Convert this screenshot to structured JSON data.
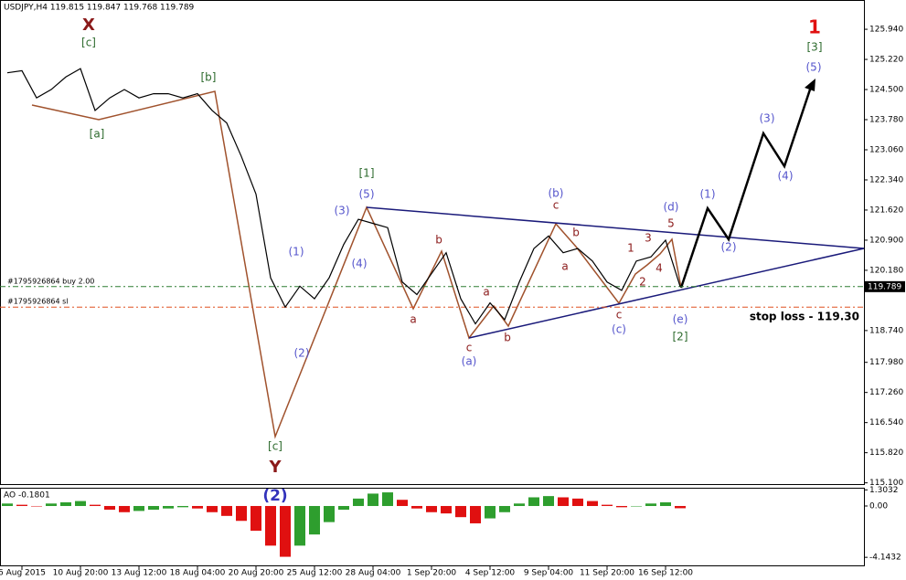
{
  "chart_data": {
    "type": "line",
    "title": "USDJPY,H4  119.815 119.847 119.768 119.789",
    "categories": [
      null,
      "6 Aug 2015",
      null,
      null,
      null,
      "10 Aug 20:00",
      null,
      null,
      null,
      "13 Aug 12:00",
      null,
      null,
      null,
      "18 Aug 04:00",
      null,
      null,
      null,
      "20 Aug 20:00",
      null,
      null,
      null,
      "25 Aug 12:00",
      null,
      null,
      null,
      "28 Aug 04:00",
      null,
      null,
      null,
      "1 Sep 20:00",
      null,
      null,
      null,
      "4 Sep 12:00",
      null,
      null,
      null,
      "9 Sep 04:00",
      null,
      null,
      null,
      "11 Sep 20:00",
      null,
      null,
      null,
      "16 Sep 12:00",
      null
    ],
    "series": [
      {
        "name": "USDJPY",
        "color": "#000000",
        "values": [
          124.9,
          124.95,
          124.3,
          124.5,
          124.8,
          125.0,
          124.0,
          124.3,
          124.5,
          124.3,
          124.4,
          124.4,
          124.3,
          124.4,
          124.0,
          123.7,
          122.9,
          122.0,
          120.0,
          119.3,
          119.8,
          119.5,
          120.0,
          120.8,
          121.4,
          121.3,
          121.2,
          119.9,
          119.6,
          120.1,
          120.6,
          119.5,
          118.9,
          119.4,
          119.0,
          119.9,
          120.7,
          121.0,
          120.6,
          120.7,
          120.4,
          119.9,
          119.7,
          120.4,
          120.5,
          120.9,
          119.789
        ]
      }
    ],
    "ylim": [
      115.07,
      126.64
    ],
    "yticks": [
      {
        "value": 125.94,
        "label": "125.940"
      },
      {
        "value": 125.22,
        "label": "125.220"
      },
      {
        "value": 124.5,
        "label": "124.500"
      },
      {
        "value": 123.78,
        "label": "123.780"
      },
      {
        "value": 123.06,
        "label": "123.060"
      },
      {
        "value": 122.34,
        "label": "122.340"
      },
      {
        "value": 121.62,
        "label": "121.620"
      },
      {
        "value": 120.9,
        "label": "120.900"
      },
      {
        "value": 120.18,
        "label": "120.180"
      },
      {
        "value": 118.74,
        "label": "118.740"
      },
      {
        "value": 117.98,
        "label": "117.980"
      },
      {
        "value": 117.26,
        "label": "117.260"
      },
      {
        "value": 116.54,
        "label": "116.540"
      },
      {
        "value": 115.82,
        "label": "115.820"
      },
      {
        "value": 115.1,
        "label": "115.100"
      }
    ],
    "current_price": 119.789,
    "levels": [
      {
        "label": "#1795926864 buy 2.00",
        "value": 119.79,
        "color": "#2e7d32"
      },
      {
        "label": "#1795926864 sl",
        "value": 119.3,
        "color": "#e05020"
      }
    ],
    "stop_loss_label": "stop loss - 119.30",
    "annotations": [
      {
        "text": "X",
        "color": "#8b1a1a"
      },
      {
        "text": "[c]",
        "color": "#2e6b2e"
      },
      {
        "text": "[a]",
        "color": "#2e6b2e"
      },
      {
        "text": "[b]",
        "color": "#2e6b2e"
      },
      {
        "text": "[1]",
        "color": "#2e6b2e"
      },
      {
        "text": "(5)",
        "color": "#5555cc"
      },
      {
        "text": "(3)",
        "color": "#5555cc"
      },
      {
        "text": "(1)",
        "color": "#5555cc"
      },
      {
        "text": "(4)",
        "color": "#5555cc"
      },
      {
        "text": "(2)",
        "color": "#5555cc"
      },
      {
        "text": "[c]",
        "color": "#2e6b2e"
      },
      {
        "text": "Y",
        "color": "#8b1a1a"
      },
      {
        "text": "b",
        "color": "#8b1a1a"
      },
      {
        "text": "a",
        "color": "#8b1a1a"
      },
      {
        "text": "c",
        "color": "#8b1a1a"
      },
      {
        "text": "(a)",
        "color": "#5555cc"
      },
      {
        "text": "a",
        "color": "#8b1a1a"
      },
      {
        "text": "b",
        "color": "#8b1a1a"
      },
      {
        "text": "(b)",
        "color": "#5555cc"
      },
      {
        "text": "c",
        "color": "#8b1a1a"
      },
      {
        "text": "b",
        "color": "#8b1a1a"
      },
      {
        "text": "a",
        "color": "#8b1a1a"
      },
      {
        "text": "c",
        "color": "#8b1a1a"
      },
      {
        "text": "(c)",
        "color": "#5555cc"
      },
      {
        "text": "1",
        "color": "#8b1a1a"
      },
      {
        "text": "3",
        "color": "#8b1a1a"
      },
      {
        "text": "5",
        "color": "#8b1a1a"
      },
      {
        "text": "(d)",
        "color": "#5555cc"
      },
      {
        "text": "2",
        "color": "#8b1a1a"
      },
      {
        "text": "4",
        "color": "#8b1a1a"
      },
      {
        "text": "(e)",
        "color": "#5555cc"
      },
      {
        "text": "[2]",
        "color": "#2e6b2e"
      },
      {
        "text": "(1)",
        "color": "#5555cc"
      },
      {
        "text": "(2)",
        "color": "#5555cc"
      },
      {
        "text": "(3)",
        "color": "#5555cc"
      },
      {
        "text": "(4)",
        "color": "#5555cc"
      },
      {
        "text": "(5)",
        "color": "#5555cc"
      },
      {
        "text": "[3]",
        "color": "#2e6b2e"
      },
      {
        "text": "1",
        "color": "#e01010"
      },
      {
        "text": "(2)",
        "color": "#3333bb"
      }
    ],
    "indicator": {
      "title": "AO -0.1801",
      "up_color": "#2e9e2e",
      "down_color": "#e01010",
      "values": [
        0.2,
        0.1,
        0.0,
        0.2,
        0.3,
        0.4,
        0.1,
        -0.3,
        -0.5,
        -0.4,
        -0.3,
        -0.2,
        -0.1,
        -0.2,
        -0.5,
        -0.8,
        -1.2,
        -2.0,
        -3.2,
        -4.1,
        -3.2,
        -2.3,
        -1.3,
        -0.3,
        0.6,
        1.0,
        1.1,
        0.5,
        -0.2,
        -0.5,
        -0.6,
        -0.9,
        -1.4,
        -1.0,
        -0.5,
        0.2,
        0.7,
        0.8,
        0.7,
        0.6,
        0.4,
        0.1,
        -0.1,
        0.0,
        0.2,
        0.3,
        -0.1801
      ],
      "ylim": [
        -4.5,
        1.4
      ],
      "yticks": [
        1.3032,
        {
          "value": 0,
          "label": "0.00"
        },
        -4.1432
      ]
    }
  }
}
